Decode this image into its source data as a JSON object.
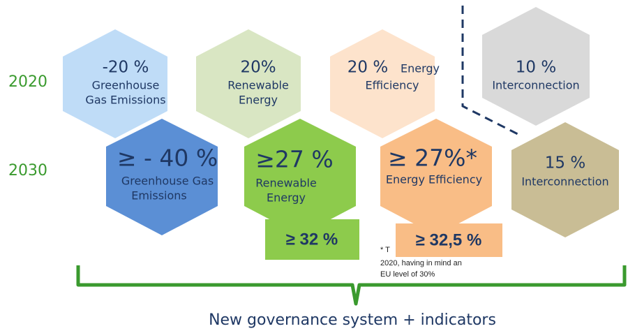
{
  "row_labels": [
    "2020",
    "2030"
  ],
  "targets_2020": [
    {
      "value": "-20 %",
      "label": [
        "Greenhouse",
        "Gas Emissions"
      ]
    },
    {
      "value": "20%",
      "label": [
        "Renewable",
        "Energy"
      ]
    },
    {
      "value": "20 %",
      "label": [
        "Energy",
        "Efficiency"
      ]
    },
    {
      "value": "10 %",
      "label": [
        "Interconnection"
      ]
    }
  ],
  "targets_2030": [
    {
      "value": "≥ - 40 %",
      "label": [
        "Greenhouse Gas",
        "Emissions"
      ]
    },
    {
      "value": "≥27 %",
      "label": [
        "Renewable",
        "Energy"
      ]
    },
    {
      "value": "≥ 27%*",
      "label": [
        "Energy Efficiency"
      ]
    },
    {
      "value": "15 %",
      "label": [
        "Interconnection"
      ]
    }
  ],
  "revised_targets": [
    "≥ 32 %",
    "≥ 32,5 %"
  ],
  "footnote": [
    "* T",
    "2020, having in mind an",
    "EU level of 30%"
  ],
  "footer": "New governance system + indicators"
}
